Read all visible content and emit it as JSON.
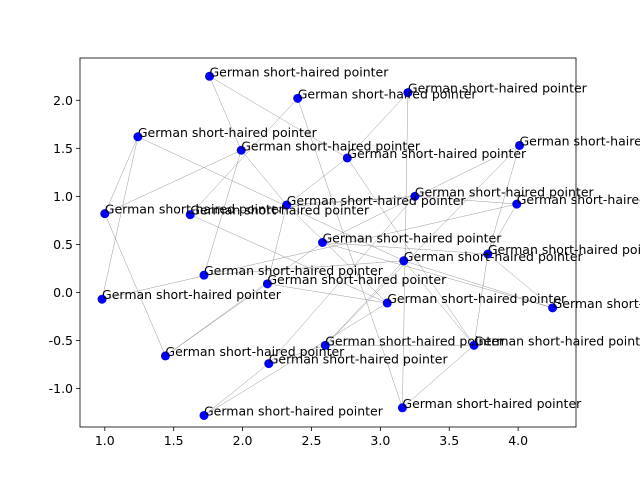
{
  "chart_data": {
    "type": "scatter",
    "title": "",
    "xlabel": "",
    "ylabel": "",
    "xlim": [
      0.82,
      4.42
    ],
    "ylim": [
      -1.4,
      2.44
    ],
    "xticks": [
      "1.0",
      "1.5",
      "2.0",
      "2.5",
      "3.0",
      "3.5",
      "4.0"
    ],
    "yticks": [
      "-1.0",
      "-0.5",
      "0.0",
      "0.5",
      "1.0",
      "1.5",
      "2.0"
    ],
    "grid": false,
    "marker_color": "#0000ff",
    "edge_color": "#808080",
    "points": [
      {
        "x": 1.76,
        "y": 2.25,
        "label": "German short-haired pointer"
      },
      {
        "x": 2.4,
        "y": 2.02,
        "label": "German short-haired pointer"
      },
      {
        "x": 3.2,
        "y": 2.08,
        "label": "German short-haired pointer"
      },
      {
        "x": 1.24,
        "y": 1.62,
        "label": "German short-haired pointer"
      },
      {
        "x": 1.99,
        "y": 1.48,
        "label": "German short-haired pointer"
      },
      {
        "x": 2.76,
        "y": 1.4,
        "label": "German short-haired pointer"
      },
      {
        "x": 4.01,
        "y": 1.53,
        "label": "German short-haired pointer"
      },
      {
        "x": 3.25,
        "y": 1.0,
        "label": "German short-haired pointer"
      },
      {
        "x": 2.32,
        "y": 0.91,
        "label": "German short-haired pointer"
      },
      {
        "x": 3.99,
        "y": 0.92,
        "label": "German short-haired pointer"
      },
      {
        "x": 1.0,
        "y": 0.82,
        "label": "German short-haired pointer"
      },
      {
        "x": 1.62,
        "y": 0.81,
        "label": "German short-haired pointer"
      },
      {
        "x": 2.58,
        "y": 0.52,
        "label": "German short-haired pointer"
      },
      {
        "x": 3.78,
        "y": 0.4,
        "label": "German short-haired pointer"
      },
      {
        "x": 3.17,
        "y": 0.33,
        "label": "German short-haired pointer"
      },
      {
        "x": 1.72,
        "y": 0.18,
        "label": "German short-haired pointer"
      },
      {
        "x": 2.18,
        "y": 0.09,
        "label": "German short-haired pointer"
      },
      {
        "x": 0.98,
        "y": -0.07,
        "label": "German short-haired pointer"
      },
      {
        "x": 3.05,
        "y": -0.11,
        "label": "German short-haired pointer"
      },
      {
        "x": 4.25,
        "y": -0.16,
        "label": "German short-haired pointer"
      },
      {
        "x": 2.6,
        "y": -0.55,
        "label": "German short-haired pointer"
      },
      {
        "x": 3.68,
        "y": -0.55,
        "label": "German short-haired pointer"
      },
      {
        "x": 1.44,
        "y": -0.66,
        "label": "German short-haired pointer"
      },
      {
        "x": 2.19,
        "y": -0.74,
        "label": "German short-haired pointer"
      },
      {
        "x": 3.16,
        "y": -1.2,
        "label": "German short-haired pointer"
      },
      {
        "x": 1.72,
        "y": -1.28,
        "label": "German short-haired pointer"
      }
    ],
    "edges": [
      [
        0,
        5
      ],
      [
        0,
        4
      ],
      [
        1,
        11
      ],
      [
        1,
        24
      ],
      [
        2,
        5
      ],
      [
        2,
        24
      ],
      [
        3,
        14
      ],
      [
        3,
        10
      ],
      [
        3,
        17
      ],
      [
        4,
        10
      ],
      [
        4,
        8
      ],
      [
        4,
        15
      ],
      [
        5,
        8
      ],
      [
        5,
        21
      ],
      [
        6,
        12
      ],
      [
        6,
        13
      ],
      [
        6,
        20
      ],
      [
        7,
        8
      ],
      [
        7,
        9
      ],
      [
        7,
        11
      ],
      [
        7,
        23
      ],
      [
        8,
        16
      ],
      [
        8,
        18
      ],
      [
        9,
        13
      ],
      [
        9,
        17
      ],
      [
        10,
        22
      ],
      [
        11,
        18
      ],
      [
        12,
        13
      ],
      [
        12,
        19
      ],
      [
        12,
        22
      ],
      [
        13,
        19
      ],
      [
        13,
        21
      ],
      [
        14,
        15
      ],
      [
        14,
        19
      ],
      [
        14,
        20
      ],
      [
        14,
        21
      ],
      [
        16,
        18
      ],
      [
        16,
        22
      ],
      [
        18,
        25
      ],
      [
        20,
        21
      ],
      [
        20,
        23
      ],
      [
        21,
        24
      ],
      [
        23,
        25
      ]
    ]
  }
}
